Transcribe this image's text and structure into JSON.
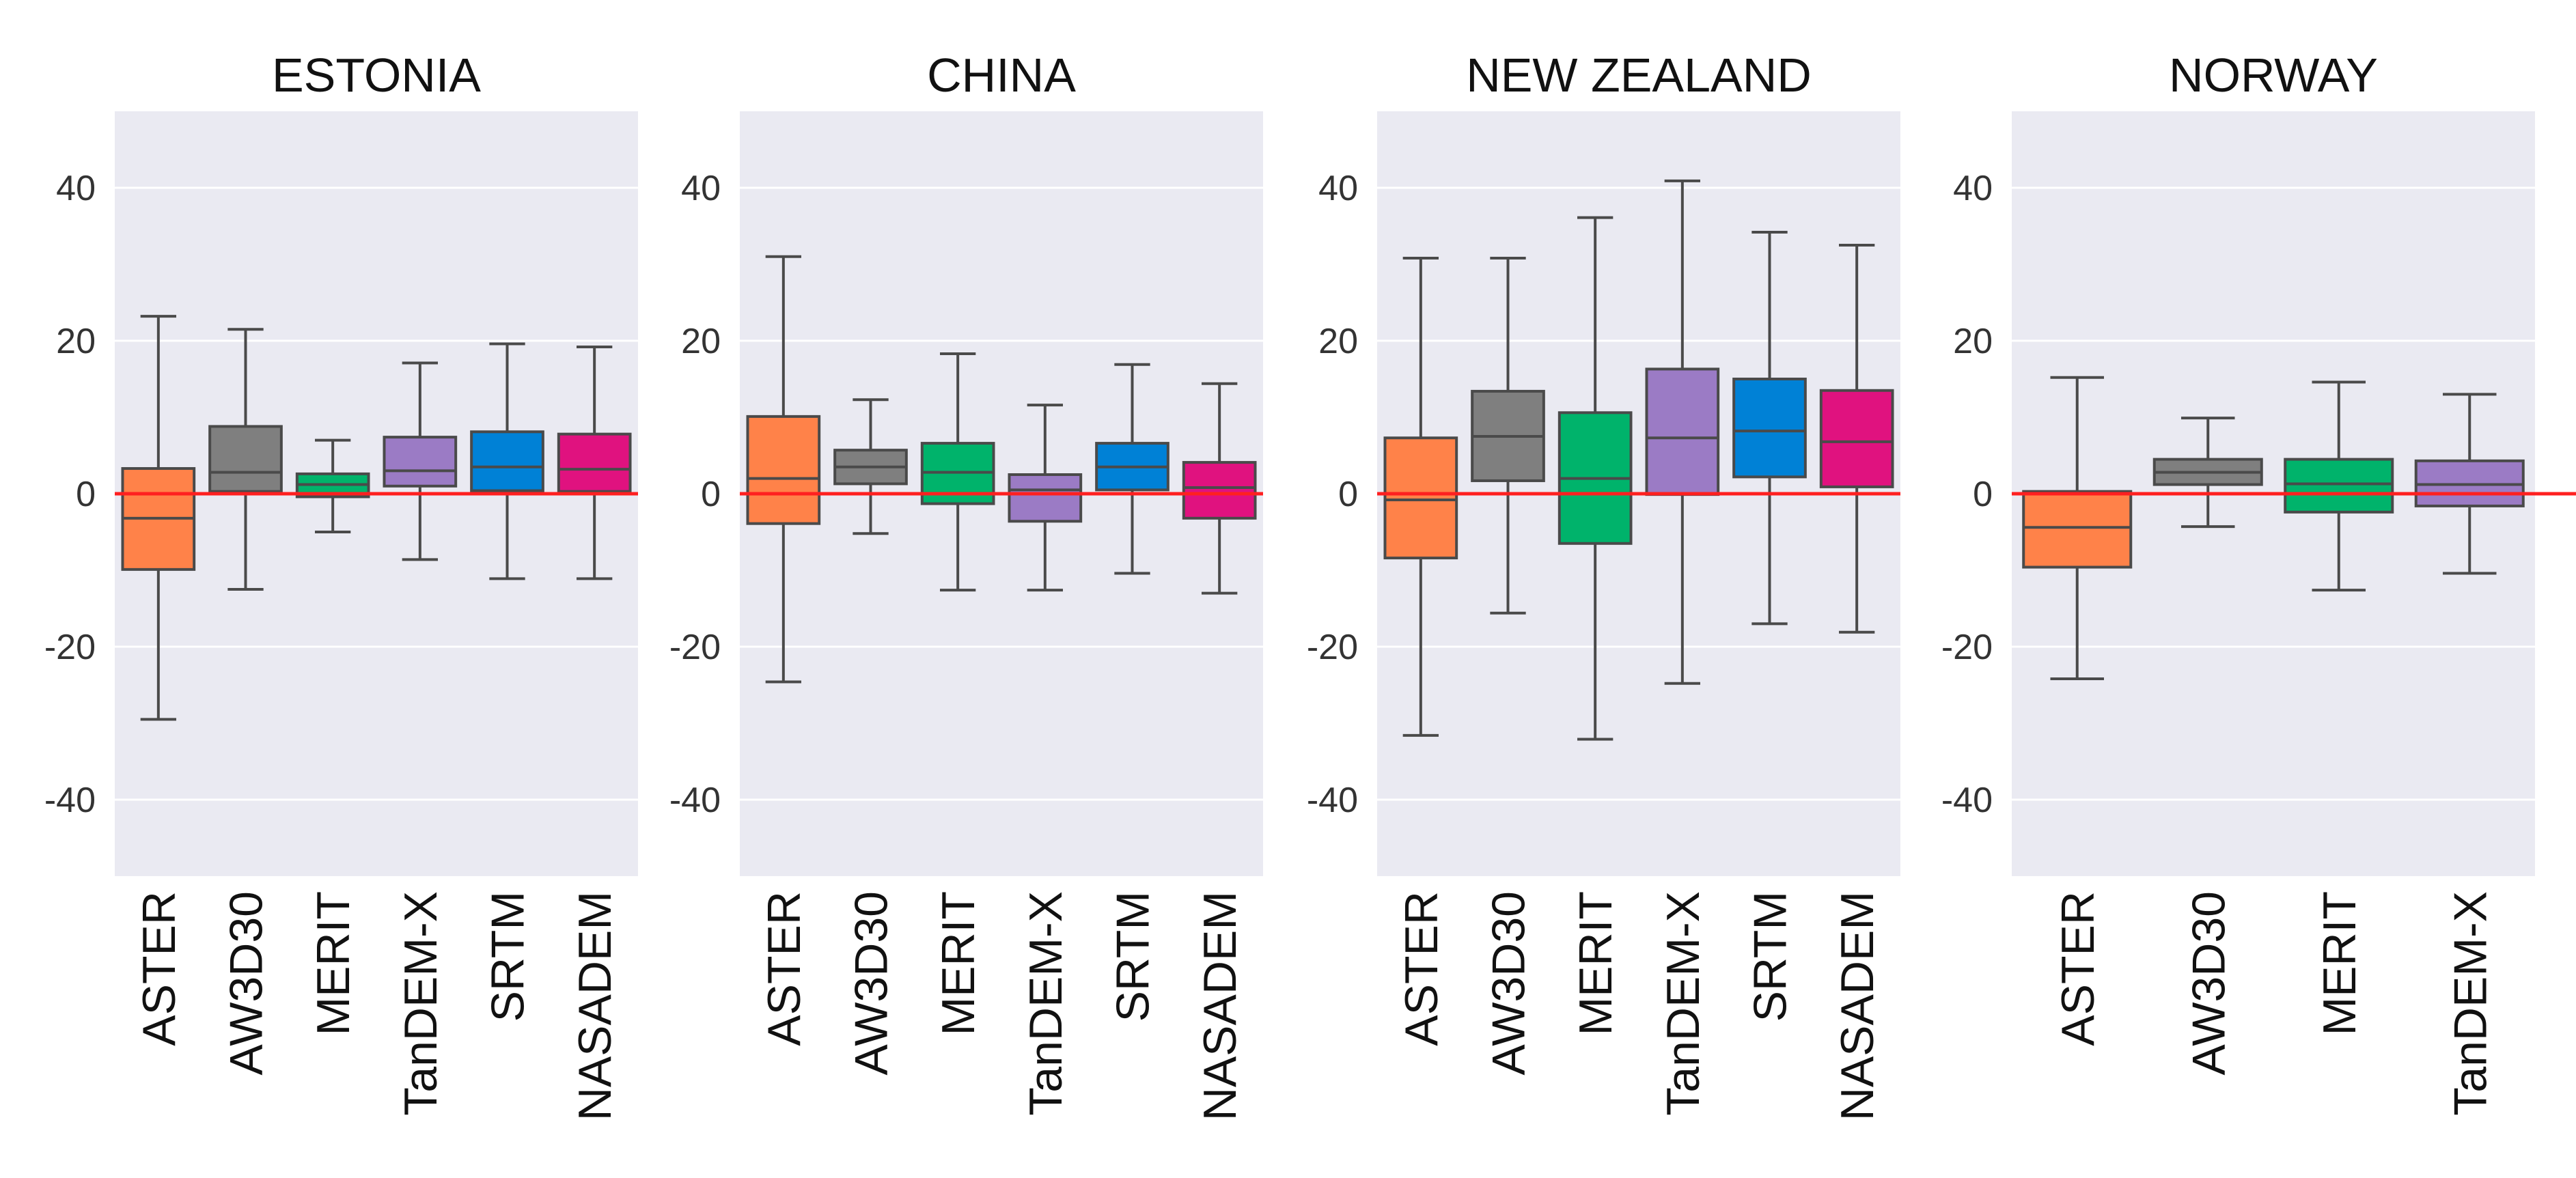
{
  "figure": {
    "background": "#ffffff",
    "plot_bg": "#eaeaf2",
    "grid": "#ffffff",
    "box_edge": "#4a4a4a",
    "zero_line": "#ff2020"
  },
  "colors": {
    "ASTER": "#ff8249",
    "AW3D30": "#7f7f7f",
    "MERIT": "#00b36b",
    "TanDEM-X": "#9b7bc5",
    "SRTM": "#0081d6",
    "NASADEM": "#e0127f"
  },
  "chart_data": [
    {
      "type": "box",
      "title": "ESTONIA",
      "ylim": [
        -50,
        50
      ],
      "yticks": [
        40,
        20,
        0,
        -20,
        -40
      ],
      "ytick_labels": [
        "40",
        "20",
        "0",
        "-20",
        "-40"
      ],
      "grid": true,
      "reference_line": 0,
      "categories": [
        "ASTER",
        "AW3D30",
        "MERIT",
        "TanDEM-X",
        "SRTM",
        "NASADEM"
      ],
      "boxes": [
        {
          "label": "ASTER",
          "whisker_low": -29.5,
          "q1": -9.9,
          "median": -3.2,
          "q3": 3.3,
          "whisker_high": 23.2
        },
        {
          "label": "AW3D30",
          "whisker_low": -12.5,
          "q1": 0.3,
          "median": 2.8,
          "q3": 8.8,
          "whisker_high": 21.5
        },
        {
          "label": "MERIT",
          "whisker_low": -5.0,
          "q1": -0.4,
          "median": 1.2,
          "q3": 2.6,
          "whisker_high": 7.0
        },
        {
          "label": "TanDEM-X",
          "whisker_low": -8.6,
          "q1": 1.0,
          "median": 3.0,
          "q3": 7.4,
          "whisker_high": 17.1
        },
        {
          "label": "SRTM",
          "whisker_low": -11.1,
          "q1": 0.4,
          "median": 3.5,
          "q3": 8.1,
          "whisker_high": 19.6
        },
        {
          "label": "NASADEM",
          "whisker_low": -11.1,
          "q1": 0.3,
          "median": 3.2,
          "q3": 7.8,
          "whisker_high": 19.2
        }
      ]
    },
    {
      "type": "box",
      "title": "CHINA",
      "ylim": [
        -50,
        50
      ],
      "yticks": [
        40,
        20,
        0,
        -20,
        -40
      ],
      "ytick_labels": [
        "40",
        "20",
        "0",
        "-20",
        "-40"
      ],
      "grid": true,
      "reference_line": 0,
      "categories": [
        "ASTER",
        "AW3D30",
        "MERIT",
        "TanDEM-X",
        "SRTM",
        "NASADEM"
      ],
      "boxes": [
        {
          "label": "ASTER",
          "whisker_low": -24.6,
          "q1": -3.9,
          "median": 2.0,
          "q3": 10.1,
          "whisker_high": 31.0
        },
        {
          "label": "AW3D30",
          "whisker_low": -5.2,
          "q1": 1.3,
          "median": 3.5,
          "q3": 5.7,
          "whisker_high": 12.3
        },
        {
          "label": "MERIT",
          "whisker_low": -12.6,
          "q1": -1.3,
          "median": 2.8,
          "q3": 6.6,
          "whisker_high": 18.3
        },
        {
          "label": "TanDEM-X",
          "whisker_low": -12.6,
          "q1": -3.6,
          "median": 0.5,
          "q3": 2.5,
          "whisker_high": 11.6
        },
        {
          "label": "SRTM",
          "whisker_low": -10.4,
          "q1": 0.5,
          "median": 3.5,
          "q3": 6.6,
          "whisker_high": 16.9
        },
        {
          "label": "NASADEM",
          "whisker_low": -13.0,
          "q1": -3.2,
          "median": 0.8,
          "q3": 4.1,
          "whisker_high": 14.4
        }
      ]
    },
    {
      "type": "box",
      "title": "NEW ZEALAND",
      "ylim": [
        -50,
        50
      ],
      "yticks": [
        40,
        20,
        0,
        -20,
        -40
      ],
      "ytick_labels": [
        "40",
        "20",
        "0",
        "-20",
        "-40"
      ],
      "grid": true,
      "reference_line": 0,
      "categories": [
        "ASTER",
        "AW3D30",
        "MERIT",
        "TanDEM-X",
        "SRTM",
        "NASADEM"
      ],
      "boxes": [
        {
          "label": "ASTER",
          "whisker_low": -31.6,
          "q1": -8.4,
          "median": -0.8,
          "q3": 7.3,
          "whisker_high": 30.8
        },
        {
          "label": "AW3D30",
          "whisker_low": -15.6,
          "q1": 1.7,
          "median": 7.5,
          "q3": 13.4,
          "whisker_high": 30.8
        },
        {
          "label": "MERIT",
          "whisker_low": -32.1,
          "q1": -6.5,
          "median": 2.0,
          "q3": 10.6,
          "whisker_high": 36.1
        },
        {
          "label": "TanDEM-X",
          "whisker_low": -24.8,
          "q1": -0.1,
          "median": 7.3,
          "q3": 16.3,
          "whisker_high": 40.9
        },
        {
          "label": "SRTM",
          "whisker_low": -17.0,
          "q1": 2.2,
          "median": 8.2,
          "q3": 15.0,
          "whisker_high": 34.2
        },
        {
          "label": "NASADEM",
          "whisker_low": -18.1,
          "q1": 0.9,
          "median": 6.8,
          "q3": 13.5,
          "whisker_high": 32.5
        }
      ]
    },
    {
      "type": "box",
      "title": "NORWAY",
      "ylim": [
        -50,
        50
      ],
      "yticks": [
        40,
        20,
        0,
        -20,
        -40
      ],
      "ytick_labels": [
        "40",
        "20",
        "0",
        "-20",
        "-40"
      ],
      "grid": true,
      "reference_line": 0,
      "categories": [
        "ASTER",
        "AW3D30",
        "MERIT",
        "TanDEM-X"
      ],
      "boxes": [
        {
          "label": "ASTER",
          "whisker_low": -24.2,
          "q1": -9.6,
          "median": -4.4,
          "q3": 0.3,
          "whisker_high": 15.2
        },
        {
          "label": "AW3D30",
          "whisker_low": -4.3,
          "q1": 1.2,
          "median": 2.8,
          "q3": 4.5,
          "whisker_high": 9.9
        },
        {
          "label": "MERIT",
          "whisker_low": -12.6,
          "q1": -2.4,
          "median": 1.3,
          "q3": 4.5,
          "whisker_high": 14.6
        },
        {
          "label": "TanDEM-X",
          "whisker_low": -10.4,
          "q1": -1.6,
          "median": 1.2,
          "q3": 4.3,
          "whisker_high": 13.0
        }
      ]
    }
  ]
}
